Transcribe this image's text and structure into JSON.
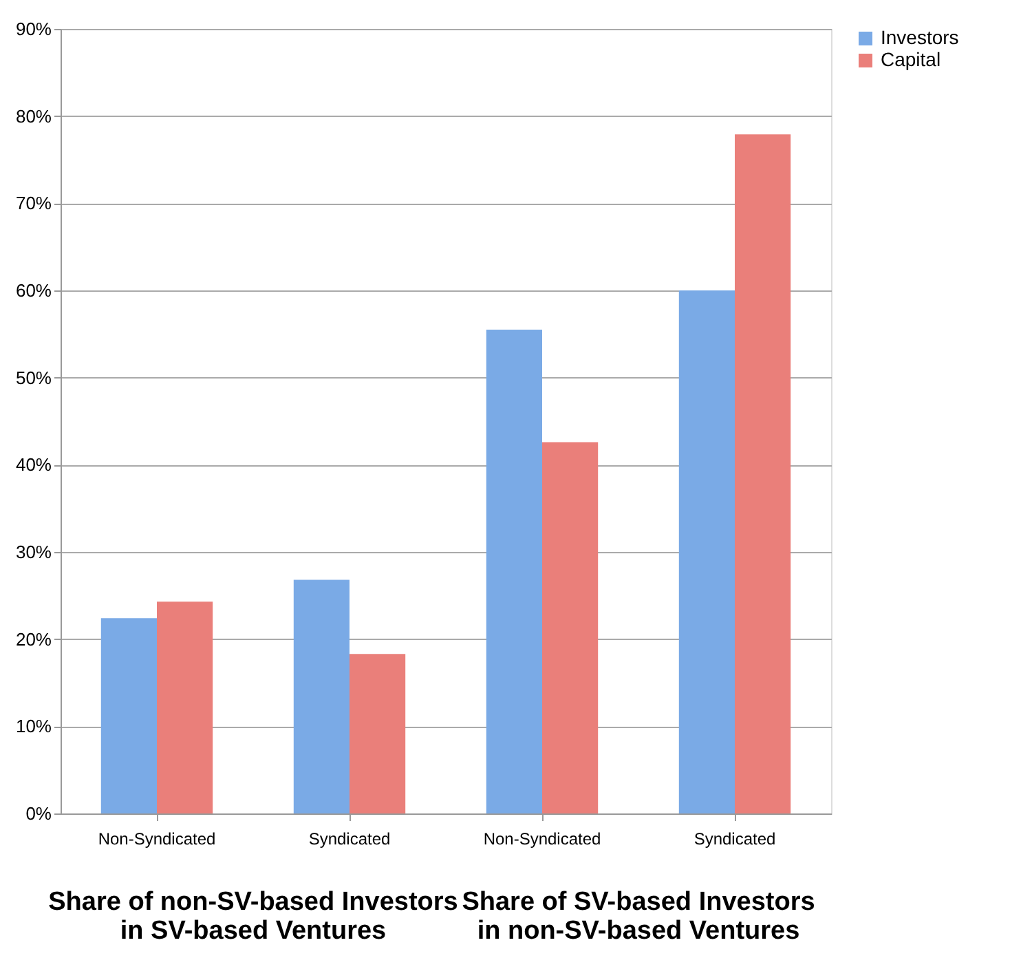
{
  "chart_data": {
    "type": "bar",
    "categories": [
      "Non-Syndicated",
      "Syndicated",
      "Non-Syndicated",
      "Syndicated"
    ],
    "series": [
      {
        "name": "Investors",
        "color": "#7aaae6",
        "values": [
          22.4,
          26.8,
          55.5,
          60.0
        ]
      },
      {
        "name": "Capital",
        "color": "#ea7f7a",
        "values": [
          24.3,
          18.3,
          42.6,
          77.9
        ]
      }
    ],
    "ylim": [
      0,
      90
    ],
    "yticks": [
      {
        "value": 0,
        "label": "0%"
      },
      {
        "value": 10,
        "label": "10%"
      },
      {
        "value": 20,
        "label": "20%"
      },
      {
        "value": 30,
        "label": "30%"
      },
      {
        "value": 40,
        "label": "40%"
      },
      {
        "value": 50,
        "label": "50%"
      },
      {
        "value": 60,
        "label": "60%"
      },
      {
        "value": 70,
        "label": "70%"
      },
      {
        "value": 80,
        "label": "80%"
      },
      {
        "value": 90,
        "label": "90%"
      }
    ],
    "annotations": [
      "Share of non-SV-based Investors\nin SV-based Ventures",
      "Share of SV-based Investors\nin non-SV-based Ventures"
    ],
    "grid": "y",
    "legend": "right"
  }
}
